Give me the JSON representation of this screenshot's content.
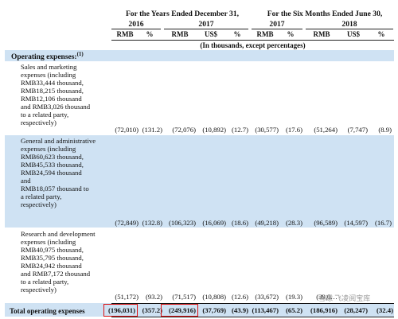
{
  "header": {
    "years_title": "For the Years Ended December 31,",
    "sixmonths_title": "For the Six Months Ended June 30,",
    "year_2016": "2016",
    "year_2017": "2017",
    "year_2017b": "2017",
    "year_2018": "2018",
    "units_note": "(In thousands, except percentages)",
    "columns": [
      "RMB",
      "%",
      "RMB",
      "US$",
      "%",
      "RMB",
      "%",
      "RMB",
      "US$",
      "%"
    ]
  },
  "section": {
    "title": "Operating expenses:",
    "footnote": "(1)"
  },
  "rows": [
    {
      "lines": [
        "Sales and marketing",
        "expenses (including",
        "RMB33,444 thousand,",
        "RMB18,215 thousand,",
        "RMB12,106 thousand",
        "and RMB3,026 thousand",
        "to a related party,",
        "respectively)"
      ],
      "values": [
        "(72,010)",
        "(131.2)",
        "(72,076)",
        "(10,892)",
        "(12.7)",
        "(30,577)",
        "(17.6)",
        "(51,264)",
        "(7,747)",
        "(8.9)"
      ]
    },
    {
      "lines": [
        "General and administrative",
        "expenses (including",
        "RMB60,623 thousand,",
        "RMB45,533 thousand,",
        "RMB24,594 thousand",
        "and",
        "RMB18,057 thousand to",
        "a related party,",
        "respectively)"
      ],
      "values": [
        "(72,849)",
        "(132.8)",
        "(106,323)",
        "(16,069)",
        "(18.6)",
        "(49,218)",
        "(28.3)",
        "(96,589)",
        "(14,597)",
        "(16.7)"
      ]
    },
    {
      "lines": [
        "Research and development",
        "expenses (including",
        "RMB40,975 thousand,",
        "RMB35,795 thousand,",
        "RMB24,942 thousand",
        "and RMB7,172 thousand",
        "to a related party,",
        "respectively)"
      ],
      "values": [
        "(51,172)",
        "(93.2)",
        "(71,517)",
        "(10,808)",
        "(12.6)",
        "(33,672)",
        "(19.3)",
        "(39,0…",
        "",
        ""
      ]
    }
  ],
  "total": {
    "label": "Total operating expenses",
    "values": [
      "(196,031)",
      "(357.2)",
      "(249,916)",
      "(37,769)",
      "(43.9)",
      "(113,467)",
      "(65.2)",
      "(186,916)",
      "(28,247)",
      "(32.4)"
    ]
  },
  "watermark": "雪球 飞凌阅宝库",
  "colors": {
    "band": "#cfe2f3",
    "highlight_box": "#dd1111"
  }
}
